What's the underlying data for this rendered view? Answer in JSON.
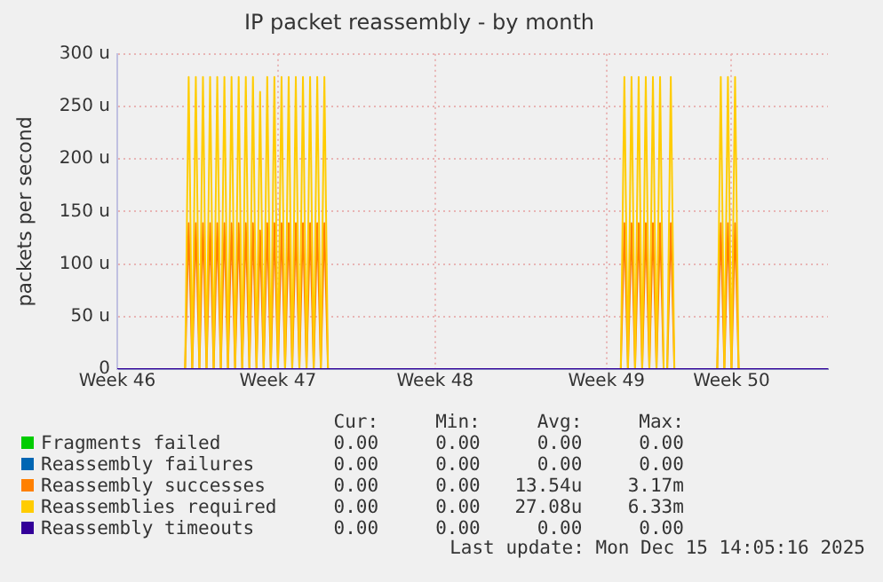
{
  "chart_data": {
    "type": "line",
    "title": "IP packet reassembly - by month",
    "ylabel": "packets per second",
    "categories": [
      "Week 46",
      null,
      null,
      null,
      null,
      null,
      null,
      null,
      null,
      null,
      null,
      null,
      null,
      null,
      null,
      null,
      null,
      null,
      null,
      null,
      null,
      null,
      null,
      null,
      null,
      null,
      null,
      null,
      null,
      null,
      null,
      null,
      null,
      null,
      null,
      null,
      null,
      null,
      null,
      null,
      null,
      null,
      null,
      null,
      null,
      "Week 47",
      null,
      null,
      null,
      null,
      null,
      null,
      null,
      null,
      null,
      null,
      null,
      null,
      null,
      null,
      null,
      null,
      null,
      null,
      null,
      null,
      null,
      null,
      null,
      null,
      null,
      null,
      null,
      null,
      null,
      null,
      null,
      null,
      null,
      null,
      null,
      null,
      null,
      null,
      null,
      null,
      null,
      null,
      null,
      "Week 48",
      null,
      null,
      null,
      null,
      null,
      null,
      null,
      null,
      null,
      null,
      null,
      null,
      null,
      null,
      null,
      null,
      null,
      null,
      null,
      null,
      null,
      null,
      null,
      null,
      null,
      null,
      null,
      null,
      null,
      null,
      null,
      null,
      null,
      null,
      null,
      null,
      null,
      null,
      null,
      null,
      null,
      null,
      null,
      null,
      null,
      null,
      null,
      "Week 49",
      null,
      null,
      null,
      null,
      null,
      null,
      null,
      null,
      null,
      null,
      null,
      null,
      null,
      null,
      null,
      null,
      null,
      null,
      null,
      null,
      null,
      null,
      null,
      null,
      null,
      null,
      null,
      null,
      null,
      null,
      null,
      null,
      null,
      null,
      "Week 50",
      null,
      null,
      null,
      null,
      null,
      null,
      null,
      null,
      null,
      null,
      null,
      null,
      null,
      null,
      null,
      null,
      null,
      null,
      null,
      null,
      null,
      null,
      null,
      null,
      null,
      null,
      null
    ],
    "series": [
      {
        "name": "Fragments failed",
        "color": "#00cc00",
        "values": [
          null,
          null,
          null,
          null,
          null,
          null,
          null,
          null,
          null,
          null,
          null,
          null,
          null,
          null,
          null,
          null,
          null,
          null,
          null,
          null,
          null,
          null,
          null,
          null,
          null,
          null,
          null,
          null,
          null,
          null,
          null,
          null,
          null,
          null,
          null,
          null,
          null,
          null,
          null,
          null,
          null,
          null,
          null,
          null,
          null,
          null,
          null,
          null,
          null,
          null,
          null,
          null,
          null,
          null,
          null,
          null,
          null,
          null,
          null,
          null,
          null,
          null,
          null,
          null,
          null,
          null,
          null,
          null,
          null,
          null,
          null,
          null,
          null,
          null,
          null,
          null,
          null,
          null,
          null,
          null,
          null,
          null,
          null,
          null,
          null,
          null,
          null,
          null,
          null,
          null,
          null,
          null,
          null,
          null,
          null,
          null,
          null,
          null,
          null,
          null,
          null,
          null,
          null,
          null,
          null,
          null,
          null,
          null,
          null,
          null,
          null,
          null,
          null,
          null,
          null,
          null,
          null,
          null,
          null,
          null,
          null,
          null,
          null,
          null,
          null,
          null,
          null,
          null,
          null,
          null,
          null,
          null,
          null,
          null,
          null,
          null,
          null,
          null,
          null,
          null,
          null,
          null,
          null,
          null,
          null,
          null,
          null,
          null,
          null,
          null,
          null,
          null,
          null,
          null,
          null,
          null,
          null,
          null,
          null,
          null,
          null,
          null,
          null,
          null,
          null,
          null,
          null,
          null,
          null,
          null,
          null,
          null,
          null,
          null,
          null,
          null,
          null,
          null,
          null,
          null,
          null,
          null,
          null,
          null,
          null,
          null,
          null,
          null,
          null,
          null,
          null,
          null,
          null,
          null,
          null,
          null,
          null,
          null,
          null,
          null
        ]
      },
      {
        "name": "Reassembly failures",
        "color": "#0066b3",
        "values": [
          null,
          null,
          null,
          null,
          null,
          null,
          null,
          null,
          null,
          null,
          null,
          null,
          null,
          null,
          null,
          null,
          null,
          null,
          null,
          null,
          null,
          null,
          null,
          null,
          null,
          null,
          null,
          null,
          null,
          null,
          null,
          null,
          null,
          null,
          null,
          null,
          null,
          null,
          null,
          null,
          null,
          null,
          null,
          null,
          null,
          null,
          null,
          null,
          null,
          null,
          null,
          null,
          null,
          null,
          null,
          null,
          null,
          null,
          null,
          null,
          null,
          null,
          null,
          null,
          null,
          null,
          null,
          null,
          null,
          null,
          null,
          null,
          null,
          null,
          null,
          null,
          null,
          null,
          null,
          null,
          null,
          null,
          null,
          null,
          null,
          null,
          null,
          null,
          null,
          null,
          null,
          null,
          null,
          null,
          null,
          null,
          null,
          null,
          null,
          null,
          null,
          null,
          null,
          null,
          null,
          null,
          null,
          null,
          null,
          null,
          null,
          null,
          null,
          null,
          null,
          null,
          null,
          null,
          null,
          null,
          null,
          null,
          null,
          null,
          null,
          null,
          null,
          null,
          null,
          null,
          null,
          null,
          null,
          null,
          null,
          null,
          null,
          null,
          null,
          null,
          null,
          null,
          null,
          null,
          null,
          null,
          null,
          null,
          null,
          null,
          null,
          null,
          null,
          null,
          null,
          null,
          null,
          null,
          null,
          null,
          null,
          null,
          null,
          null,
          null,
          null,
          null,
          null,
          null,
          null,
          null,
          null,
          null,
          null,
          null,
          null,
          null,
          null,
          null,
          null,
          null,
          null,
          null,
          null,
          null,
          null,
          null,
          null,
          null,
          null,
          null,
          null,
          null,
          null,
          null,
          null,
          null,
          null,
          null,
          null
        ]
      },
      {
        "name": "Reassembly successes",
        "color": "#ff8000",
        "values": [
          null,
          null,
          null,
          null,
          null,
          null,
          null,
          null,
          null,
          null,
          null,
          null,
          null,
          null,
          null,
          null,
          null,
          null,
          null,
          0,
          139,
          0,
          139,
          0,
          139,
          0,
          139,
          0,
          139,
          0,
          139,
          0,
          139,
          0,
          139,
          0,
          139,
          0,
          139,
          0,
          132,
          0,
          139,
          0,
          139,
          0,
          139,
          0,
          139,
          0,
          139,
          0,
          139,
          0,
          139,
          0,
          139,
          0,
          139,
          0,
          null,
          null,
          null,
          null,
          null,
          null,
          null,
          null,
          null,
          null,
          null,
          null,
          null,
          null,
          null,
          null,
          null,
          null,
          null,
          null,
          null,
          null,
          null,
          null,
          null,
          null,
          null,
          null,
          null,
          null,
          null,
          null,
          null,
          null,
          null,
          null,
          null,
          null,
          null,
          null,
          null,
          null,
          null,
          null,
          null,
          null,
          null,
          null,
          null,
          null,
          null,
          null,
          null,
          null,
          null,
          null,
          null,
          null,
          null,
          null,
          null,
          null,
          null,
          null,
          null,
          null,
          null,
          null,
          null,
          null,
          null,
          null,
          null,
          null,
          null,
          null,
          null,
          null,
          null,
          null,
          null,
          0,
          139,
          0,
          139,
          0,
          139,
          0,
          139,
          0,
          139,
          0,
          139,
          0,
          0,
          139,
          0,
          null,
          null,
          null,
          null,
          null,
          null,
          null,
          null,
          null,
          null,
          null,
          0,
          139,
          0,
          139,
          0,
          139,
          0,
          null,
          null,
          null,
          null,
          null,
          null,
          null,
          null,
          null,
          null,
          null,
          null,
          null,
          null,
          null,
          null,
          null,
          null,
          null,
          null,
          null,
          null,
          null,
          null,
          null
        ]
      },
      {
        "name": "Reassemblies required",
        "color": "#ffcc00",
        "values": [
          null,
          null,
          null,
          null,
          null,
          null,
          null,
          null,
          null,
          null,
          null,
          null,
          null,
          null,
          null,
          null,
          null,
          null,
          null,
          0,
          278,
          0,
          278,
          0,
          278,
          0,
          278,
          0,
          278,
          0,
          278,
          0,
          278,
          0,
          278,
          0,
          278,
          0,
          278,
          0,
          264,
          0,
          278,
          0,
          278,
          0,
          278,
          0,
          278,
          0,
          278,
          0,
          278,
          0,
          278,
          0,
          278,
          0,
          278,
          0,
          null,
          null,
          null,
          null,
          null,
          null,
          null,
          null,
          null,
          null,
          null,
          null,
          null,
          null,
          null,
          null,
          null,
          null,
          null,
          null,
          null,
          null,
          null,
          null,
          null,
          null,
          null,
          null,
          null,
          null,
          null,
          null,
          null,
          null,
          null,
          null,
          null,
          null,
          null,
          null,
          null,
          null,
          null,
          null,
          null,
          null,
          null,
          null,
          null,
          null,
          null,
          null,
          null,
          null,
          null,
          null,
          null,
          null,
          null,
          null,
          null,
          null,
          null,
          null,
          null,
          null,
          null,
          null,
          null,
          null,
          null,
          null,
          null,
          null,
          null,
          null,
          null,
          null,
          null,
          null,
          null,
          0,
          278,
          0,
          278,
          0,
          278,
          0,
          278,
          0,
          278,
          0,
          278,
          0,
          0,
          278,
          0,
          null,
          null,
          null,
          null,
          null,
          null,
          null,
          null,
          null,
          null,
          null,
          0,
          278,
          0,
          278,
          0,
          278,
          0,
          null,
          null,
          null,
          null,
          null,
          null,
          null,
          null,
          null,
          null,
          null,
          null,
          null,
          null,
          null,
          null,
          null,
          null,
          null,
          null,
          null,
          null,
          null,
          null,
          null
        ]
      },
      {
        "name": "Reassembly timeouts",
        "color": "#330099",
        "values": [
          0,
          0,
          0,
          0,
          0,
          0,
          0,
          0,
          0,
          0,
          0,
          0,
          0,
          0,
          0,
          0,
          0,
          0,
          0,
          0,
          0,
          0,
          0,
          0,
          0,
          0,
          0,
          0,
          0,
          0,
          0,
          0,
          0,
          0,
          0,
          0,
          0,
          0,
          0,
          0,
          0,
          0,
          0,
          0,
          0,
          0,
          0,
          0,
          0,
          0,
          0,
          0,
          0,
          0,
          0,
          0,
          0,
          0,
          0,
          0,
          0,
          0,
          0,
          0,
          0,
          0,
          0,
          0,
          0,
          0,
          0,
          0,
          0,
          0,
          0,
          0,
          0,
          0,
          0,
          0,
          0,
          0,
          0,
          0,
          0,
          0,
          0,
          0,
          0,
          0,
          0,
          0,
          0,
          0,
          0,
          0,
          0,
          0,
          0,
          0,
          0,
          0,
          0,
          0,
          0,
          0,
          0,
          0,
          0,
          0,
          0,
          0,
          0,
          0,
          0,
          0,
          0,
          0,
          0,
          0,
          0,
          0,
          0,
          0,
          0,
          0,
          0,
          0,
          0,
          0,
          0,
          0,
          0,
          0,
          0,
          0,
          0,
          0,
          0,
          0,
          0,
          0,
          0,
          0,
          0,
          0,
          0,
          0,
          0,
          0,
          0,
          0,
          0,
          0,
          0,
          0,
          0,
          0,
          0,
          0,
          0,
          0,
          0,
          0,
          0,
          0,
          0,
          0,
          0,
          0,
          0,
          0,
          0,
          0,
          0,
          0,
          0,
          0,
          0,
          0,
          0,
          0,
          0,
          0,
          0,
          0,
          0,
          0,
          0,
          0,
          0,
          0,
          0,
          0,
          0,
          0,
          0,
          0,
          0,
          0
        ]
      }
    ],
    "ylim": [
      0,
      300
    ],
    "yticks": [
      0,
      {
        "value": 50,
        "label": "50 u"
      },
      {
        "value": 100,
        "label": "100 u"
      },
      {
        "value": 150,
        "label": "150 u"
      },
      {
        "value": 200,
        "label": "200 u"
      },
      {
        "value": 250,
        "label": "250 u"
      },
      {
        "value": 300,
        "label": "300 u"
      }
    ],
    "grid": true,
    "legend": "bottom",
    "marker": "none",
    "line_style": "solid",
    "annotations": [
      "Cur:",
      "Min:",
      "Avg:",
      "Max:",
      "0.00",
      "0.00",
      "0.00",
      "0.00",
      "0.00",
      "0.00",
      "0.00",
      "0.00",
      "0.00",
      "0.00",
      "13.54u",
      "3.17m",
      "0.00",
      "0.00",
      "27.08u",
      "6.33m",
      "0.00",
      "0.00",
      "0.00",
      "0.00",
      "Last update: Mon Dec 15 14:05:16 2025"
    ]
  }
}
